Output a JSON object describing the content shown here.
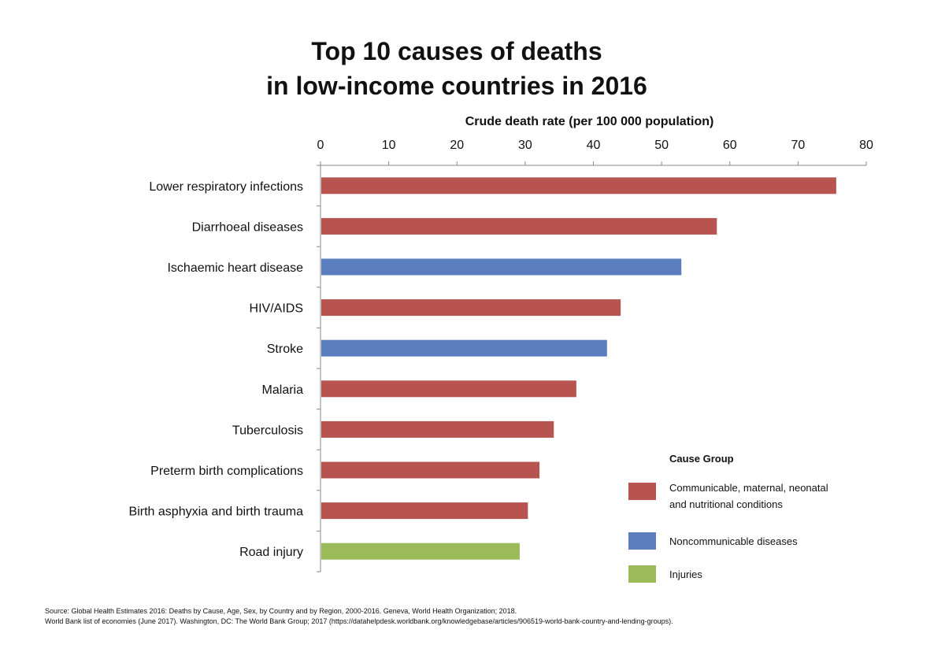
{
  "chart_data": {
    "type": "bar",
    "orientation": "horizontal",
    "title_lines": [
      "Top 10 causes of deaths",
      "in low-income countries in 2016"
    ],
    "xlabel": "Crude death rate (per 100 000 population)",
    "xlim": [
      0,
      80
    ],
    "xticks": [
      0,
      10,
      20,
      30,
      40,
      50,
      60,
      70,
      80
    ],
    "categories": [
      "Lower respiratory infections",
      "Diarrhoeal diseases",
      "Ischaemic heart disease",
      "HIV/AIDS",
      "Stroke",
      "Malaria",
      "Tuberculosis",
      "Preterm birth complications",
      "Birth asphyxia and birth trauma",
      "Road injury"
    ],
    "values": [
      75.6,
      58.1,
      52.9,
      44.0,
      42.0,
      37.5,
      34.2,
      32.1,
      30.4,
      29.2
    ],
    "groups": [
      0,
      0,
      1,
      0,
      1,
      0,
      0,
      0,
      0,
      2
    ],
    "legend": {
      "title": "Cause Group",
      "placement": "bottom-right",
      "items": [
        {
          "lines": [
            "Communicable, maternal, neonatal",
            "and nutritional conditions"
          ],
          "color": "#b85450"
        },
        {
          "lines": [
            "Noncommunicable diseases"
          ],
          "color": "#5b7fbe"
        },
        {
          "lines": [
            "Injuries"
          ],
          "color": "#9bbb59"
        }
      ]
    }
  },
  "source": {
    "line1": "Source: Global Health Estimates 2016: Deaths by Cause, Age, Sex, by Country and by Region, 2000-2016. Geneva, World Health Organization; 2018.",
    "line2": "World Bank list of economies (June 2017). Washington, DC: The World Bank Group; 2017 (https://datahelpdesk.worldbank.org/knowledgebase/articles/906519-world-bank-country-and-lending-groups)."
  }
}
